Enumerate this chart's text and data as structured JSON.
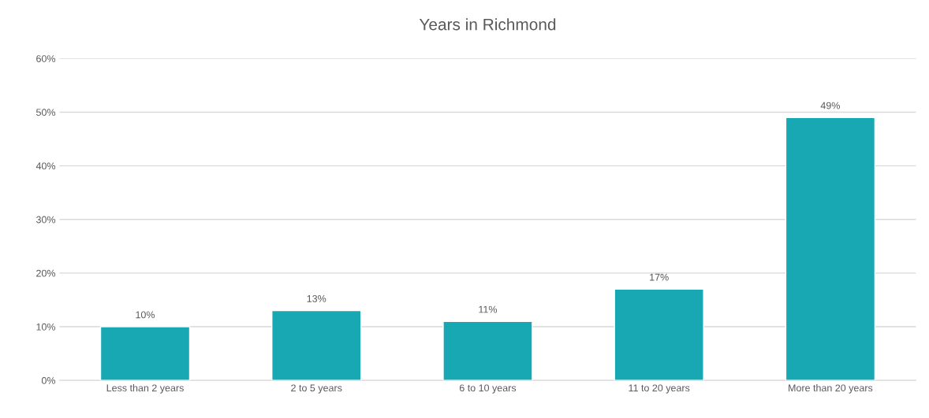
{
  "chart_data": {
    "type": "bar",
    "title": "Years in Richmond",
    "categories": [
      "Less than 2 years",
      "2 to 5 years",
      "6 to 10 years",
      "11 to 20 years",
      "More than 20 years"
    ],
    "values": [
      10,
      13,
      11,
      17,
      49
    ],
    "value_labels": [
      "10%",
      "13%",
      "11%",
      "17%",
      "49%"
    ],
    "color": "#17a8b4",
    "ylim": [
      0,
      60
    ],
    "yticks": [
      {
        "value": 0,
        "label": "0%"
      },
      {
        "value": 10,
        "label": "10%"
      },
      {
        "value": 20,
        "label": "20%"
      },
      {
        "value": 30,
        "label": "30%"
      },
      {
        "value": 40,
        "label": "40%"
      },
      {
        "value": 50,
        "label": "50%"
      },
      {
        "value": 60,
        "label": "60%"
      }
    ],
    "grid": "y"
  }
}
